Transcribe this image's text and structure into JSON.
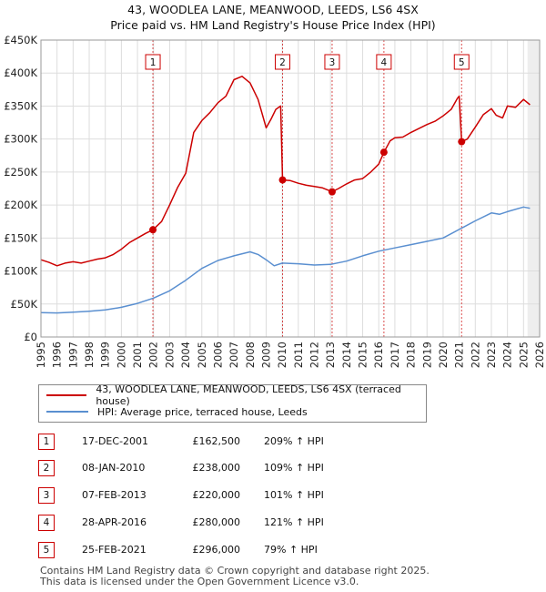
{
  "chart_data": {
    "type": "line",
    "title": "43, WOODLEA LANE, MEANWOOD, LEEDS, LS6 4SX",
    "subtitle": "Price paid vs. HM Land Registry's House Price Index (HPI)",
    "xlabel": "",
    "ylabel": "",
    "xlim": [
      1995,
      2026
    ],
    "ylim": [
      0,
      450000
    ],
    "yticks": [
      0,
      50000,
      100000,
      150000,
      200000,
      250000,
      300000,
      350000,
      400000,
      450000
    ],
    "ytick_labels": [
      "£0",
      "£50K",
      "£100K",
      "£150K",
      "£200K",
      "£250K",
      "£300K",
      "£350K",
      "£400K",
      "£450K"
    ],
    "xticks": [
      1995,
      1996,
      1997,
      1998,
      1999,
      2000,
      2001,
      2002,
      2003,
      2004,
      2005,
      2006,
      2007,
      2008,
      2009,
      2010,
      2011,
      2012,
      2013,
      2014,
      2015,
      2016,
      2017,
      2018,
      2019,
      2020,
      2021,
      2022,
      2023,
      2024,
      2025,
      2026
    ],
    "xtick_labels": [
      "1995",
      "1996",
      "1997",
      "1998",
      "1999",
      "2000",
      "2001",
      "2002",
      "2003",
      "2004",
      "2005",
      "2006",
      "2007",
      "2008",
      "2009",
      "2010",
      "2011",
      "2012",
      "2013",
      "2014",
      "2015",
      "2016",
      "2017",
      "2018",
      "2019",
      "2020",
      "2021",
      "2022",
      "2023",
      "2024",
      "2025",
      "2026"
    ],
    "grid": true,
    "future_shade_from": 2025.25,
    "series": [
      {
        "name": "43, WOODLEA LANE, MEANWOOD, LEEDS, LS6 4SX (terraced house)",
        "color": "#cc0000",
        "x": [
          1995.0,
          1995.5,
          1996.0,
          1996.5,
          1997.0,
          1997.5,
          1998.0,
          1998.5,
          1999.0,
          1999.5,
          2000.0,
          2000.5,
          2001.0,
          2001.5,
          2001.96,
          2002.5,
          2003.0,
          2003.5,
          2004.0,
          2004.5,
          2005.0,
          2005.5,
          2006.0,
          2006.5,
          2007.0,
          2007.5,
          2008.0,
          2008.5,
          2009.0,
          2009.3,
          2009.6,
          2009.9,
          2010.02,
          2010.5,
          2011.0,
          2011.5,
          2012.0,
          2012.5,
          2013.1,
          2013.5,
          2014.0,
          2014.5,
          2015.0,
          2015.5,
          2016.0,
          2016.32,
          2016.7,
          2017.0,
          2017.5,
          2018.0,
          2018.5,
          2019.0,
          2019.5,
          2020.0,
          2020.5,
          2020.9,
          2021.0,
          2021.15,
          2021.5,
          2022.0,
          2022.5,
          2023.0,
          2023.3,
          2023.7,
          2024.0,
          2024.5,
          2025.0,
          2025.4
        ],
        "values": [
          117000,
          113000,
          108000,
          112000,
          114000,
          112000,
          115000,
          118000,
          120000,
          125000,
          133000,
          143000,
          150000,
          157000,
          162500,
          175000,
          200000,
          227000,
          248000,
          310000,
          328000,
          340000,
          355000,
          365000,
          390000,
          395000,
          385000,
          360000,
          317000,
          330000,
          345000,
          350000,
          238000,
          237000,
          233000,
          230000,
          228000,
          226000,
          220000,
          225000,
          232000,
          238000,
          240000,
          250000,
          262000,
          280000,
          297000,
          302000,
          303000,
          310000,
          316000,
          322000,
          327000,
          335000,
          345000,
          362000,
          365000,
          296000,
          300000,
          318000,
          337000,
          346000,
          336000,
          332000,
          350000,
          348000,
          360000,
          352000
        ]
      },
      {
        "name": "HPI: Average price, terraced house, Leeds",
        "color": "#5a8fd0",
        "x": [
          1995.0,
          1996.0,
          1997.0,
          1998.0,
          1999.0,
          2000.0,
          2001.0,
          2002.0,
          2003.0,
          2004.0,
          2005.0,
          2006.0,
          2007.0,
          2008.0,
          2008.5,
          2009.0,
          2009.5,
          2010.0,
          2011.0,
          2012.0,
          2013.0,
          2014.0,
          2015.0,
          2016.0,
          2017.0,
          2018.0,
          2019.0,
          2020.0,
          2021.0,
          2022.0,
          2023.0,
          2023.5,
          2024.0,
          2025.0,
          2025.4
        ],
        "values": [
          37000,
          36500,
          37500,
          39000,
          41000,
          45000,
          51000,
          59000,
          70000,
          86000,
          104000,
          116000,
          123000,
          129000,
          125000,
          117000,
          108000,
          112000,
          111000,
          109000,
          110000,
          115000,
          123000,
          130000,
          135000,
          140000,
          145000,
          150000,
          163000,
          176000,
          188000,
          186000,
          190000,
          197000,
          195000
        ]
      }
    ],
    "markers": [
      {
        "label": "1",
        "x": 2001.96,
        "value": 162500
      },
      {
        "label": "2",
        "x": 2010.02,
        "value": 238000
      },
      {
        "label": "3",
        "x": 2013.1,
        "value": 220000
      },
      {
        "label": "4",
        "x": 2016.32,
        "value": 280000
      },
      {
        "label": "5",
        "x": 2021.15,
        "value": 296000
      }
    ]
  },
  "legend": {
    "items": [
      {
        "label": "43, WOODLEA LANE, MEANWOOD, LEEDS, LS6 4SX (terraced house)",
        "color": "#cc0000"
      },
      {
        "label": "HPI: Average price, terraced house, Leeds",
        "color": "#5a8fd0"
      }
    ]
  },
  "sales": [
    {
      "num": "1",
      "date": "17-DEC-2001",
      "price": "£162,500",
      "hpi": "209% ↑ HPI"
    },
    {
      "num": "2",
      "date": "08-JAN-2010",
      "price": "£238,000",
      "hpi": "109% ↑ HPI"
    },
    {
      "num": "3",
      "date": "07-FEB-2013",
      "price": "£220,000",
      "hpi": "101% ↑ HPI"
    },
    {
      "num": "4",
      "date": "28-APR-2016",
      "price": "£280,000",
      "hpi": "121% ↑ HPI"
    },
    {
      "num": "5",
      "date": "25-FEB-2021",
      "price": "£296,000",
      "hpi": "79% ↑ HPI"
    }
  ],
  "footer": {
    "line1": "Contains HM Land Registry data © Crown copyright and database right 2025.",
    "line2": "This data is licensed under the Open Government Licence v3.0."
  }
}
